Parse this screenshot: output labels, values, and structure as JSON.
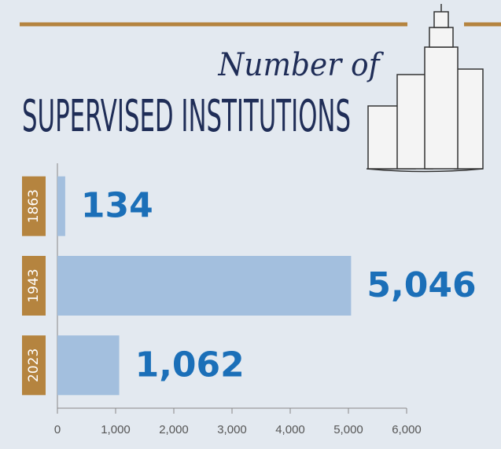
{
  "chart_data": {
    "type": "bar",
    "orientation": "horizontal",
    "title": "Number of",
    "subtitle": "SUPERVISED INSTITUTIONS",
    "categories": [
      "1863",
      "1943",
      "2023"
    ],
    "values": [
      134,
      5046,
      1062
    ],
    "value_labels": [
      "134",
      "5,046",
      "1,062"
    ],
    "color": "#a3bfde",
    "label_color": "#1b6fb8",
    "category_box_color": "#b5843f",
    "xlim": [
      0,
      6000
    ],
    "xticks": [
      0,
      {
        "value": 1000,
        "label": "1,000"
      },
      {
        "value": 2000,
        "label": "2,000"
      },
      {
        "value": 3000,
        "label": "3,000"
      },
      {
        "value": 4000,
        "label": "4,000"
      },
      {
        "value": 5000,
        "label": "5,000"
      },
      {
        "value": 6000,
        "label": "6,000"
      }
    ]
  }
}
